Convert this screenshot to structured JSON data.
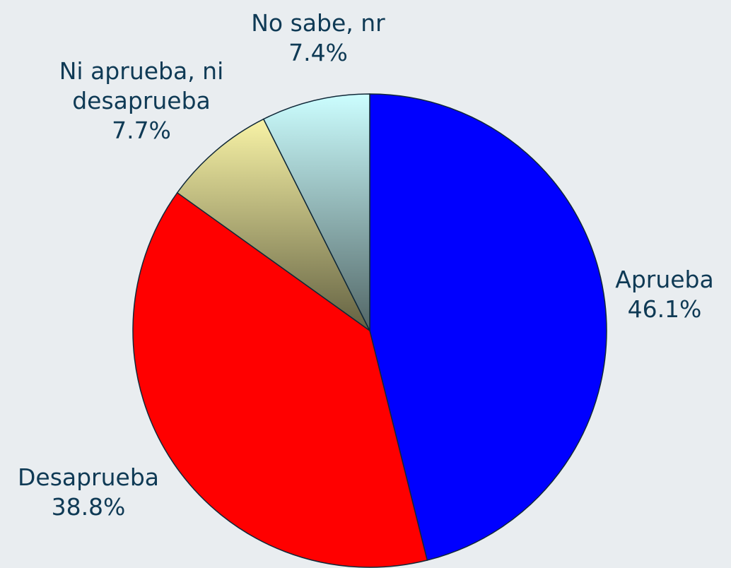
{
  "chart_data": {
    "type": "pie",
    "categories": [
      "Aprueba",
      "Desaprueba",
      "Ni aprueba, ni desaprueba",
      "No sabe, nr"
    ],
    "values": [
      46.1,
      38.8,
      7.7,
      7.4
    ],
    "value_labels": [
      "46.1%",
      "38.8%",
      "7.7%",
      "7.4%"
    ],
    "colors": [
      "#0000ff",
      "#ff0000",
      "#f8f3a6",
      "#ccfeff"
    ]
  }
}
